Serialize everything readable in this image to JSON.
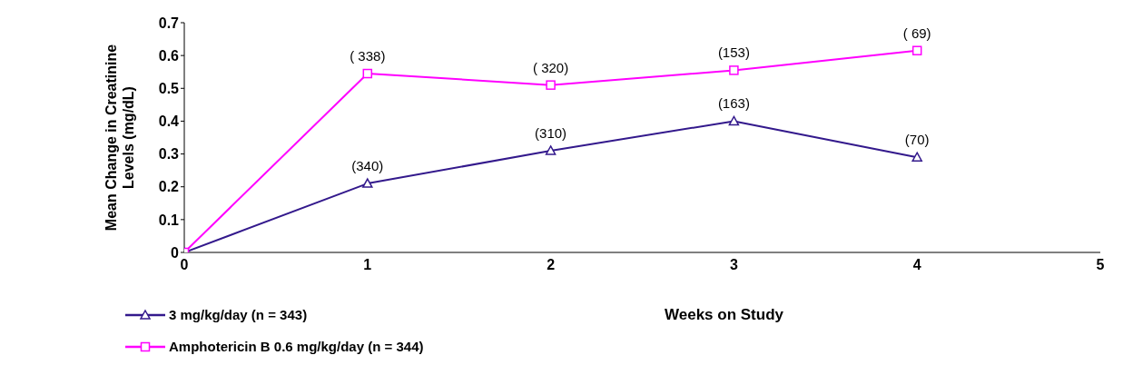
{
  "chart_data": {
    "type": "line",
    "xlabel": "Weeks on Study",
    "ylabel": "Mean Change in Creatinine Levels (mg/dL)",
    "x": [
      0,
      1,
      2,
      3,
      4
    ],
    "xlim": [
      0,
      5
    ],
    "xticks": [
      0,
      1,
      2,
      3,
      4,
      5
    ],
    "ylim": [
      0,
      0.7
    ],
    "yticks": [
      0,
      0.1,
      0.2,
      0.3,
      0.4,
      0.5,
      0.6,
      0.7
    ],
    "grid": false,
    "legend": "bottom left",
    "line_style": "solid",
    "series": [
      {
        "name": "3 mg/kg/day (n = 343)",
        "color": "#33198c",
        "marker": "triangle",
        "values": [
          0,
          0.21,
          0.31,
          0.4,
          0.29
        ]
      },
      {
        "name": "Amphotericin B 0.6 mg/kg/day (n = 344)",
        "color": "#ff00ff",
        "marker": "square",
        "values": [
          0,
          0.545,
          0.51,
          0.555,
          0.615
        ]
      }
    ],
    "annotations": [
      {
        "text": "(340)",
        "x": 1,
        "y": 0.21
      },
      {
        "text": "(310)",
        "x": 2,
        "y": 0.31
      },
      {
        "text": "(163)",
        "x": 3,
        "y": 0.4
      },
      {
        "text": "(70)",
        "x": 4,
        "y": 0.29
      },
      {
        "text": "( 338)",
        "x": 1,
        "y": 0.545
      },
      {
        "text": "( 320)",
        "x": 2,
        "y": 0.51
      },
      {
        "text": "(153)",
        "x": 3,
        "y": 0.555
      },
      {
        "text": "( 69)",
        "x": 4,
        "y": 0.615
      }
    ]
  }
}
